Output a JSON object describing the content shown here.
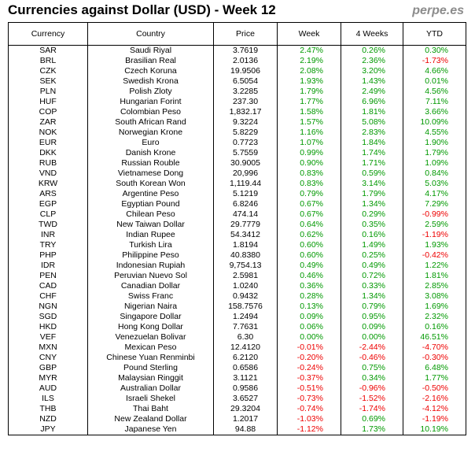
{
  "title": "Currencies against Dollar (USD) - Week 12",
  "brand": "perpe.es",
  "colors": {
    "positive": "#009900",
    "negative": "#ee0000"
  },
  "headers": [
    "Currency",
    "Country",
    "Price",
    "Week",
    "4 Weeks",
    "YTD"
  ],
  "rows": [
    {
      "code": "SAR",
      "country": "Saudi Riyal",
      "price": "3.7619",
      "week": "2.47%",
      "weeks4": "0.26%",
      "ytd": "0.30%"
    },
    {
      "code": "BRL",
      "country": "Brasilian Real",
      "price": "2.0136",
      "week": "2.19%",
      "weeks4": "2.36%",
      "ytd": "-1.73%"
    },
    {
      "code": "CZK",
      "country": "Czech Koruna",
      "price": "19.9506",
      "week": "2.08%",
      "weeks4": "3.20%",
      "ytd": "4.66%"
    },
    {
      "code": "SEK",
      "country": "Swedish Krona",
      "price": "6.5054",
      "week": "1.93%",
      "weeks4": "1.43%",
      "ytd": "0.01%"
    },
    {
      "code": "PLN",
      "country": "Polish Zloty",
      "price": "3.2285",
      "week": "1.79%",
      "weeks4": "2.49%",
      "ytd": "4.56%"
    },
    {
      "code": "HUF",
      "country": "Hungarian Forint",
      "price": "237.30",
      "week": "1.77%",
      "weeks4": "6.96%",
      "ytd": "7.11%"
    },
    {
      "code": "COP",
      "country": "Colombian Peso",
      "price": "1,832.17",
      "week": "1.58%",
      "weeks4": "1.81%",
      "ytd": "3.66%"
    },
    {
      "code": "ZAR",
      "country": "South African Rand",
      "price": "9.3224",
      "week": "1.57%",
      "weeks4": "5.08%",
      "ytd": "10.09%"
    },
    {
      "code": "NOK",
      "country": "Norwegian Krone",
      "price": "5.8229",
      "week": "1.16%",
      "weeks4": "2.83%",
      "ytd": "4.55%"
    },
    {
      "code": "EUR",
      "country": "Euro",
      "price": "0.7723",
      "week": "1.07%",
      "weeks4": "1.84%",
      "ytd": "1.90%"
    },
    {
      "code": "DKK",
      "country": "Danish Krone",
      "price": "5.7559",
      "week": "0.99%",
      "weeks4": "1.74%",
      "ytd": "1.79%"
    },
    {
      "code": "RUB",
      "country": "Russian Rouble",
      "price": "30.9005",
      "week": "0.90%",
      "weeks4": "1.71%",
      "ytd": "1.09%"
    },
    {
      "code": "VND",
      "country": "Vietnamese Dong",
      "price": "20,996",
      "week": "0.83%",
      "weeks4": "0.59%",
      "ytd": "0.84%"
    },
    {
      "code": "KRW",
      "country": "South Korean Won",
      "price": "1,119.44",
      "week": "0.83%",
      "weeks4": "3.14%",
      "ytd": "5.03%"
    },
    {
      "code": "ARS",
      "country": "Argentine Peso",
      "price": "5.1219",
      "week": "0.79%",
      "weeks4": "1.79%",
      "ytd": "4.17%"
    },
    {
      "code": "EGP",
      "country": "Egyptian Pound",
      "price": "6.8246",
      "week": "0.67%",
      "weeks4": "1.34%",
      "ytd": "7.29%"
    },
    {
      "code": "CLP",
      "country": "Chilean Peso",
      "price": "474.14",
      "week": "0.67%",
      "weeks4": "0.29%",
      "ytd": "-0.99%"
    },
    {
      "code": "TWD",
      "country": "New Taiwan Dollar",
      "price": "29.7779",
      "week": "0.64%",
      "weeks4": "0.35%",
      "ytd": "2.59%"
    },
    {
      "code": "INR",
      "country": "Indian Rupee",
      "price": "54.3412",
      "week": "0.62%",
      "weeks4": "0.16%",
      "ytd": "-1.19%"
    },
    {
      "code": "TRY",
      "country": "Turkish Lira",
      "price": "1.8194",
      "week": "0.60%",
      "weeks4": "1.49%",
      "ytd": "1.93%"
    },
    {
      "code": "PHP",
      "country": "Philippine Peso",
      "price": "40.8380",
      "week": "0.60%",
      "weeks4": "0.25%",
      "ytd": "-0.42%"
    },
    {
      "code": "IDR",
      "country": "Indonesian Rupiah",
      "price": "9,754.13",
      "week": "0.49%",
      "weeks4": "0.49%",
      "ytd": "1.22%"
    },
    {
      "code": "PEN",
      "country": "Peruvian Nuevo Sol",
      "price": "2.5981",
      "week": "0.46%",
      "weeks4": "0.72%",
      "ytd": "1.81%"
    },
    {
      "code": "CAD",
      "country": "Canadian Dollar",
      "price": "1.0240",
      "week": "0.36%",
      "weeks4": "0.33%",
      "ytd": "2.85%"
    },
    {
      "code": "CHF",
      "country": "Swiss Franc",
      "price": "0.9432",
      "week": "0.28%",
      "weeks4": "1.34%",
      "ytd": "3.08%"
    },
    {
      "code": "NGN",
      "country": "Nigerian Naira",
      "price": "158.7576",
      "week": "0.13%",
      "weeks4": "0.79%",
      "ytd": "1.69%"
    },
    {
      "code": "SGD",
      "country": "Singapore Dollar",
      "price": "1.2494",
      "week": "0.09%",
      "weeks4": "0.95%",
      "ytd": "2.32%"
    },
    {
      "code": "HKD",
      "country": "Hong Kong Dollar",
      "price": "7.7631",
      "week": "0.06%",
      "weeks4": "0.09%",
      "ytd": "0.16%"
    },
    {
      "code": "VEF",
      "country": "Venezuelan Bolivar",
      "price": "6.30",
      "week": "0.00%",
      "weeks4": "0.00%",
      "ytd": "46.51%"
    },
    {
      "code": "MXN",
      "country": "Mexican Peso",
      "price": "12.4120",
      "week": "-0.01%",
      "weeks4": "-2.44%",
      "ytd": "-4.70%"
    },
    {
      "code": "CNY",
      "country": "Chinese Yuan Renminbi",
      "price": "6.2120",
      "week": "-0.20%",
      "weeks4": "-0.46%",
      "ytd": "-0.30%"
    },
    {
      "code": "GBP",
      "country": "Pound Sterling",
      "price": "0.6586",
      "week": "-0.24%",
      "weeks4": "0.75%",
      "ytd": "6.48%"
    },
    {
      "code": "MYR",
      "country": "Malaysian Ringgit",
      "price": "3.1121",
      "week": "-0.37%",
      "weeks4": "0.34%",
      "ytd": "1.77%"
    },
    {
      "code": "AUD",
      "country": "Australian Dollar",
      "price": "0.9586",
      "week": "-0.51%",
      "weeks4": "-0.96%",
      "ytd": "-0.50%"
    },
    {
      "code": "ILS",
      "country": "Israeli Shekel",
      "price": "3.6527",
      "week": "-0.73%",
      "weeks4": "-1.52%",
      "ytd": "-2.16%"
    },
    {
      "code": "THB",
      "country": "Thai Baht",
      "price": "29.3204",
      "week": "-0.74%",
      "weeks4": "-1.74%",
      "ytd": "-4.12%"
    },
    {
      "code": "NZD",
      "country": "New Zealand Dollar",
      "price": "1.2017",
      "week": "-1.03%",
      "weeks4": "0.69%",
      "ytd": "-1.19%"
    },
    {
      "code": "JPY",
      "country": "Japanese Yen",
      "price": "94.88",
      "week": "-1.12%",
      "weeks4": "1.73%",
      "ytd": "10.19%"
    }
  ]
}
